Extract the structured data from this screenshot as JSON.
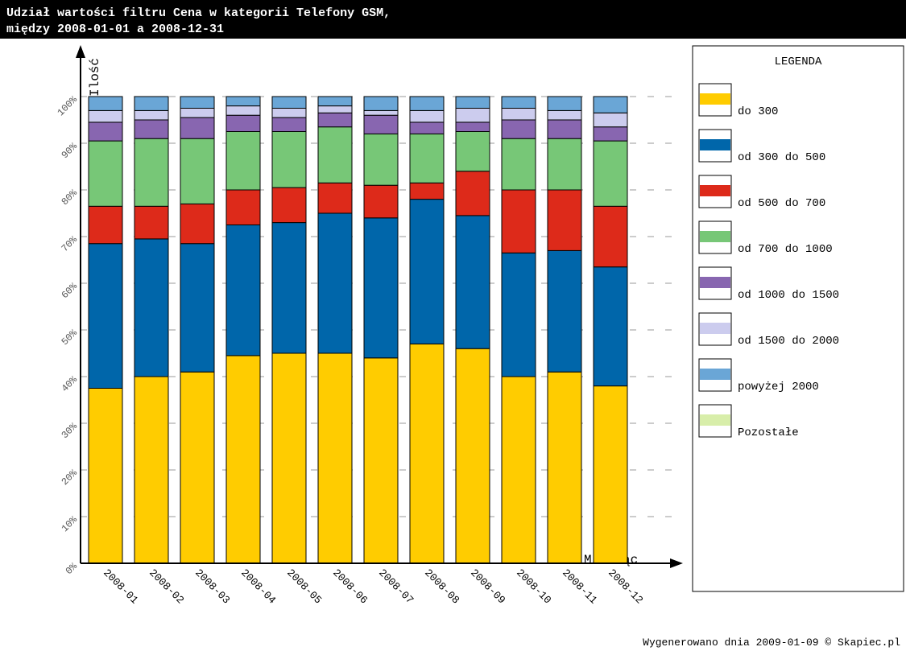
{
  "chart_data": {
    "type": "stacked_bar",
    "title": [
      "Udział wartości filtru Cena w kategorii Telefony GSM,",
      "między 2008-01-01 a 2008-12-31"
    ],
    "y_label": "Ilość",
    "x_label": "Miesiąc",
    "legend_title": "LEGENDA",
    "footer": "Wygenerowano dnia 2009-01-09 © Skapiec.pl",
    "categories": [
      "2008-01",
      "2008-02",
      "2008-03",
      "2008-04",
      "2008-05",
      "2008-06",
      "2008-07",
      "2008-08",
      "2008-09",
      "2008-10",
      "2008-11",
      "2008-12"
    ],
    "ylim": [
      0,
      100
    ],
    "yticks": [
      {
        "value": 0,
        "label": "0%"
      },
      {
        "value": 10,
        "label": "10%"
      },
      {
        "value": 20,
        "label": "20%"
      },
      {
        "value": 30,
        "label": "30%"
      },
      {
        "value": 40,
        "label": "40%"
      },
      {
        "value": 50,
        "label": "50%"
      },
      {
        "value": 60,
        "label": "60%"
      },
      {
        "value": 70,
        "label": "70%"
      },
      {
        "value": 80,
        "label": "80%"
      },
      {
        "value": 90,
        "label": "90%"
      },
      {
        "value": 100,
        "label": "100%"
      }
    ],
    "grid": true,
    "legend": "right",
    "series": [
      {
        "name": "do 300",
        "color": "#ffcc00",
        "values": [
          37.5,
          40,
          41,
          44.5,
          45,
          45,
          44,
          47,
          46,
          40,
          41,
          38
        ]
      },
      {
        "name": "od 300 do 500",
        "color": "#0066aa",
        "values": [
          31,
          29.5,
          27.5,
          28,
          28,
          30,
          30,
          31,
          28.5,
          26.5,
          26,
          25.5
        ]
      },
      {
        "name": "od 500 do 700",
        "color": "#dd2a1a",
        "values": [
          8,
          7,
          8.5,
          7.5,
          7.5,
          6.5,
          7,
          3.5,
          9.5,
          13.5,
          13,
          13
        ]
      },
      {
        "name": "od 700 do 1000",
        "color": "#77c777",
        "values": [
          14,
          14.5,
          14,
          12.5,
          12,
          12,
          11,
          10.5,
          8.5,
          11,
          11,
          14
        ]
      },
      {
        "name": "od 1000 do 1500",
        "color": "#8866b0",
        "values": [
          4,
          4,
          4.5,
          3.5,
          3,
          3,
          4,
          2.5,
          2,
          4,
          4,
          3
        ]
      },
      {
        "name": "od 1500 do 2000",
        "color": "#ccccee",
        "values": [
          2.5,
          2,
          2,
          2,
          2,
          1.5,
          1,
          2.5,
          3,
          2.5,
          2,
          3
        ]
      },
      {
        "name": "powyżej 2000",
        "color": "#6aa6d6",
        "values": [
          3,
          3,
          2.5,
          2,
          2.5,
          2,
          3,
          3,
          2.5,
          2.5,
          3,
          3.5
        ]
      },
      {
        "name": "Pozostałe",
        "color": "#d8eeaa",
        "values": [
          0,
          0,
          0,
          0,
          0,
          0,
          0,
          0,
          0,
          0,
          0,
          0
        ]
      }
    ]
  }
}
